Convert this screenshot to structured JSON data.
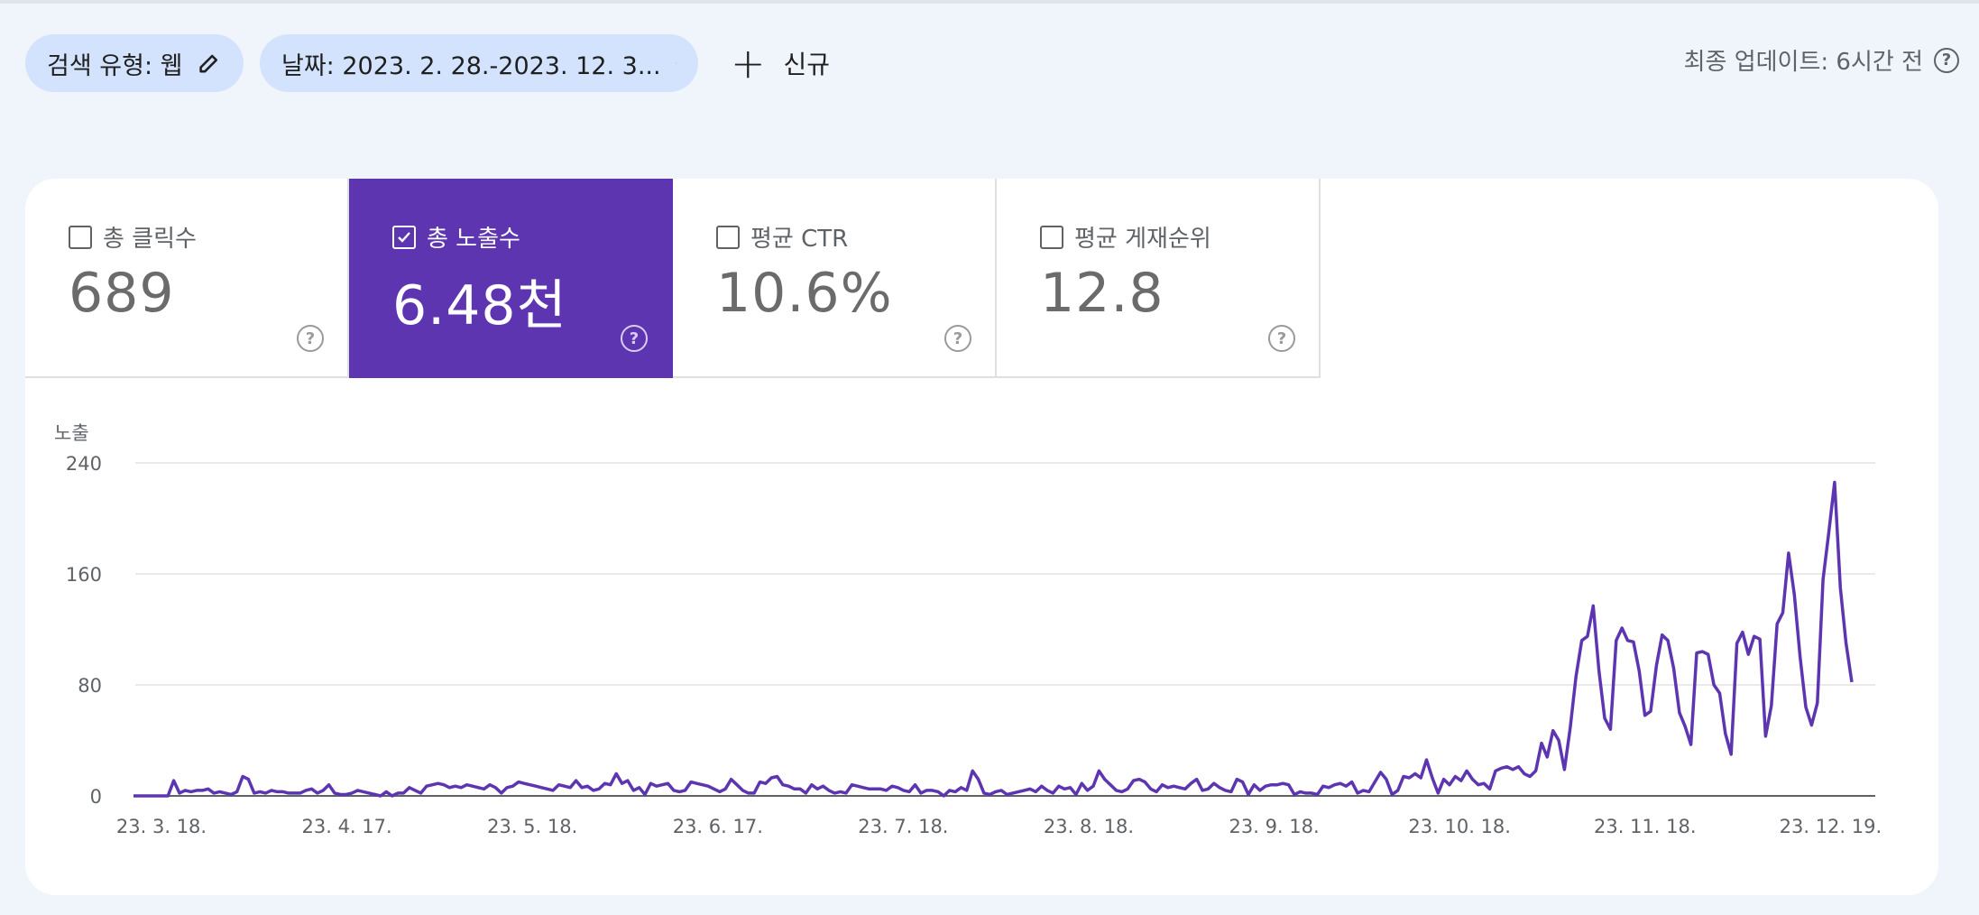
{
  "filters": {
    "search_type": "검색 유형: 웹",
    "date_range": "날짜: 2023. 2. 28.-2023. 12. 3...",
    "new_label": "신규",
    "last_updated": "최종 업데이트: 6시간 전"
  },
  "metrics": [
    {
      "label": "총 클릭수",
      "value": "689",
      "checked": false
    },
    {
      "label": "총 노출수",
      "value": "6.48천",
      "checked": true
    },
    {
      "label": "평균 CTR",
      "value": "10.6%",
      "checked": false
    },
    {
      "label": "평균 게재순위",
      "value": "12.8",
      "checked": false
    }
  ],
  "colors": {
    "accent": "#5e35b1",
    "line": "#5e35b1",
    "chip": "#d3e3fd"
  },
  "chart_data": {
    "type": "line",
    "ylabel": "노출",
    "ylim": [
      0,
      240
    ],
    "yticks": [
      0,
      80,
      160,
      240
    ],
    "xticks": [
      "23. 3. 18.",
      "23. 4. 17.",
      "23. 5. 18.",
      "23. 6. 17.",
      "23. 7. 18.",
      "23. 8. 18.",
      "23. 9. 18.",
      "23. 10. 18.",
      "23. 11. 18.",
      "23. 12. 19."
    ],
    "series": [
      {
        "values": [
          0,
          0,
          0,
          0,
          0,
          0,
          0,
          11,
          2,
          4,
          3,
          4,
          4,
          5,
          2,
          3,
          2,
          1,
          3,
          14,
          12,
          2,
          3,
          2,
          4,
          3,
          3,
          2,
          2,
          2,
          4,
          5,
          2,
          4,
          8,
          2,
          1,
          1,
          2,
          4,
          3,
          2,
          1,
          0,
          3,
          0,
          2,
          2,
          6,
          4,
          2,
          7,
          8,
          9,
          8,
          6,
          7,
          6,
          8,
          7,
          6,
          5,
          8,
          6,
          2,
          6,
          7,
          10,
          9,
          8,
          7,
          6,
          5,
          4,
          8,
          7,
          6,
          11,
          6,
          7,
          4,
          5,
          9,
          8,
          16,
          9,
          11,
          4,
          6,
          1,
          9,
          7,
          8,
          9,
          4,
          3,
          4,
          10,
          9,
          8,
          7,
          5,
          3,
          5,
          12,
          8,
          4,
          2,
          2,
          10,
          9,
          13,
          14,
          8,
          7,
          5,
          5,
          2,
          8,
          5,
          7,
          4,
          2,
          3,
          2,
          8,
          7,
          6,
          5,
          5,
          5,
          4,
          7,
          6,
          4,
          3,
          8,
          2,
          4,
          4,
          3,
          0,
          4,
          3,
          6,
          4,
          18,
          12,
          2,
          1,
          3,
          4,
          1,
          2,
          3,
          4,
          5,
          3,
          7,
          4,
          2,
          7,
          5,
          6,
          1,
          9,
          4,
          7,
          18,
          12,
          8,
          4,
          3,
          5,
          11,
          12,
          10,
          5,
          3,
          8,
          6,
          7,
          6,
          5,
          9,
          12,
          4,
          5,
          9,
          6,
          4,
          3,
          12,
          10,
          1,
          8,
          4,
          7,
          8,
          8,
          9,
          8,
          1,
          3,
          2,
          2,
          1,
          7,
          6,
          8,
          9,
          7,
          10,
          2,
          4,
          3,
          10,
          17,
          12,
          1,
          4,
          14,
          13,
          16,
          13,
          26,
          13,
          2,
          12,
          8,
          14,
          11,
          18,
          12,
          8,
          9,
          5,
          18,
          20,
          21,
          19,
          21,
          16,
          14,
          18,
          38,
          28,
          47,
          40,
          19,
          49,
          86,
          112,
          115,
          137,
          90,
          56,
          48,
          112,
          121,
          112,
          111,
          90,
          58,
          61,
          94,
          116,
          112,
          92,
          60,
          50,
          37,
          103,
          104,
          102,
          80,
          74,
          45,
          30,
          110,
          118,
          102,
          115,
          113,
          43,
          65,
          124,
          132,
          175,
          145,
          100,
          64,
          51,
          67,
          156,
          190,
          226,
          150,
          110,
          82
        ]
      }
    ]
  }
}
